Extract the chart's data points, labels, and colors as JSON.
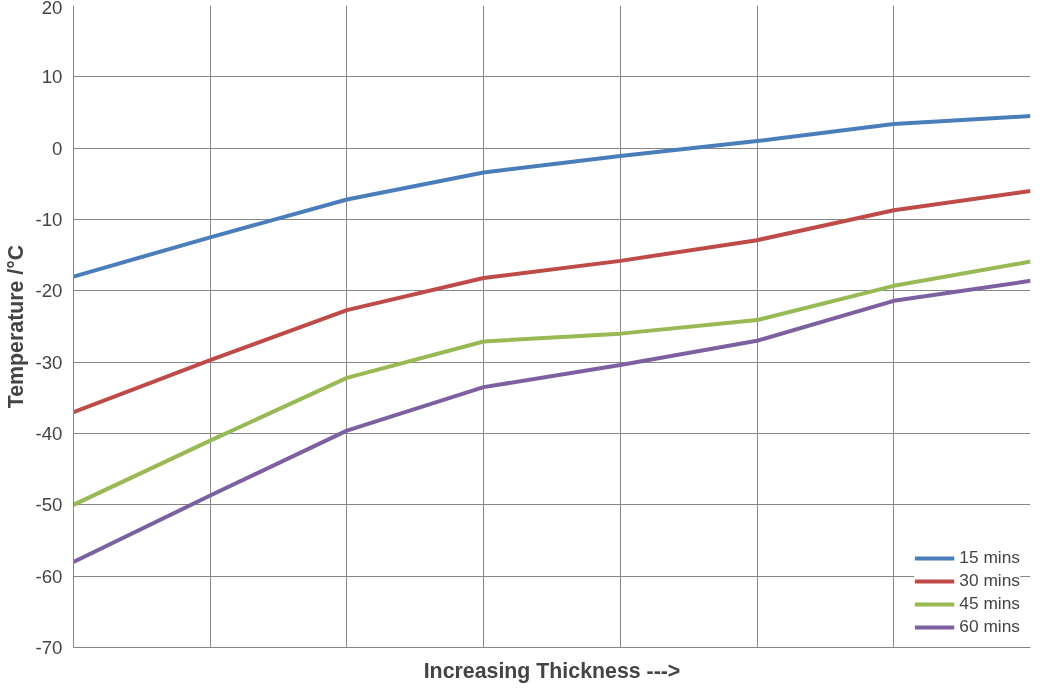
{
  "chart_data": {
    "type": "line",
    "ylabel": "Temperature /°C",
    "xlabel": "Increasing Thickness --->",
    "categories": [
      null,
      null,
      null,
      null,
      null,
      null,
      null,
      null
    ],
    "ylim": [
      -70,
      20
    ],
    "yticks": [
      -70,
      -60,
      -50,
      -40,
      -30,
      -20,
      -10,
      0,
      10,
      20
    ],
    "grid": true,
    "legend": "bottom right",
    "marker": "none",
    "line_style": "solid",
    "series": [
      {
        "name": "15 mins",
        "color": "#4a7ebb",
        "values": [
          -18,
          -12.5,
          -7.2,
          -3.4,
          -1.1,
          1,
          3.4,
          4.5
        ]
      },
      {
        "name": "30 mins",
        "color": "#be4b48",
        "values": [
          -37,
          -29.7,
          -22.7,
          -18.2,
          -15.8,
          -12.9,
          -8.7,
          -6
        ]
      },
      {
        "name": "45 mins",
        "color": "#98b954",
        "values": [
          -50,
          -41,
          -32.2,
          -27.1,
          -26,
          -24.1,
          -19.3,
          -15.9
        ]
      },
      {
        "name": "60 mins",
        "color": "#7d60a0",
        "values": [
          -58,
          -48.7,
          -39.6,
          -33.5,
          -30.4,
          -27,
          -21.4,
          -18.6
        ]
      }
    ]
  }
}
